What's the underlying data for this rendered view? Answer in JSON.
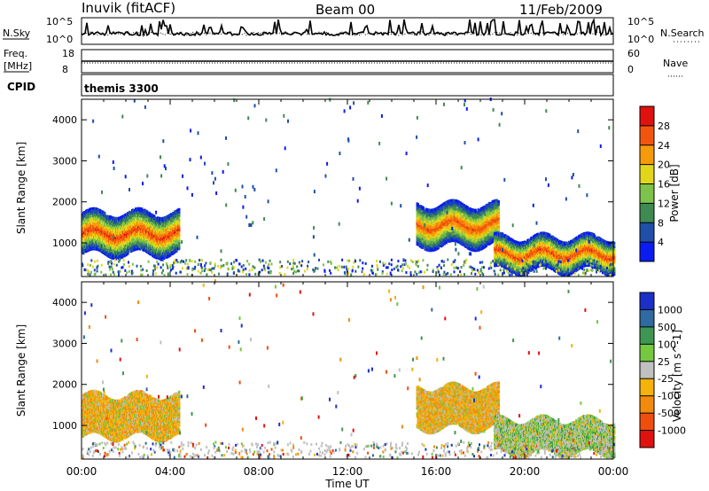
{
  "header": {
    "station": "Inuvik (fitACF)",
    "beam": "Beam 00",
    "date": "11/Feb/2009"
  },
  "status_panels": {
    "nsky_label": "N.Sky",
    "nsky_ticks": [
      "10^5",
      "10^0"
    ],
    "nsearch_label": "N.Search",
    "nsearch_ticks": [
      "10^5",
      "10^0"
    ],
    "freq_label": "Freq.",
    "freq_unit": "[MHz]",
    "freq_ticks": [
      "18",
      "8"
    ],
    "nave_label": "Nave",
    "nave_ticks": [
      "60",
      "0"
    ],
    "cpid_label": "CPID",
    "cpid_value": "themis 3300"
  },
  "chart_data": [
    {
      "type": "heatmap",
      "panel": "power",
      "xlabel": "Time UT",
      "ylabel": "Slant Range [km]",
      "x_ticks": [
        "00:00",
        "04:00",
        "08:00",
        "12:00",
        "16:00",
        "20:00",
        "00:00"
      ],
      "xlim_hours": [
        0,
        24
      ],
      "y_ticks": [
        1000,
        2000,
        3000,
        4000
      ],
      "ylim": [
        180,
        4500
      ],
      "colorbar_label": "Power [dB]",
      "colorbar_ticks": [
        "4",
        "8",
        "12",
        "16",
        "20",
        "24",
        "28"
      ],
      "colorscale": [
        "#0a1cf0",
        "#1f4fa8",
        "#3f8a52",
        "#7dc24a",
        "#e2d61a",
        "#f59a0b",
        "#f2560e",
        "#e0120f"
      ],
      "regions": [
        {
          "t0": 0.0,
          "t1": 4.4,
          "r0": 700,
          "r1": 1700,
          "level": 0.92
        },
        {
          "t0": 15.1,
          "t1": 18.8,
          "r0": 900,
          "r1": 1900,
          "level": 0.88
        },
        {
          "t0": 18.6,
          "t1": 24.0,
          "r0": 300,
          "r1": 1100,
          "level": 0.9
        }
      ]
    },
    {
      "type": "heatmap",
      "panel": "velocity",
      "xlabel": "Time UT",
      "ylabel": "Slant Range [km]",
      "x_ticks": [
        "00:00",
        "04:00",
        "08:00",
        "12:00",
        "16:00",
        "20:00",
        "00:00"
      ],
      "xlim_hours": [
        0,
        24
      ],
      "y_ticks": [
        1000,
        2000,
        3000,
        4000
      ],
      "ylim": [
        180,
        4500
      ],
      "colorbar_label": "Velocity [m s^-1]",
      "colorbar_ticks": [
        "1000",
        "500",
        "100",
        "25",
        "-25",
        "-100",
        "-500",
        "-1000"
      ],
      "colorscale": [
        "#1a30c8",
        "#2f6aa0",
        "#3f9652",
        "#75c840",
        "#c0c0c0",
        "#f5b20b",
        "#f28a0c",
        "#f04e0d",
        "#e0120f"
      ],
      "regions": [
        {
          "t0": 0.0,
          "t1": 4.4,
          "r0": 700,
          "r1": 1700,
          "velocity": -120
        },
        {
          "t0": 15.1,
          "t1": 18.8,
          "r0": 900,
          "r1": 1900,
          "velocity": -200
        },
        {
          "t0": 18.6,
          "t1": 24.0,
          "r0": 300,
          "r1": 1100,
          "velocity": 60
        }
      ]
    }
  ]
}
